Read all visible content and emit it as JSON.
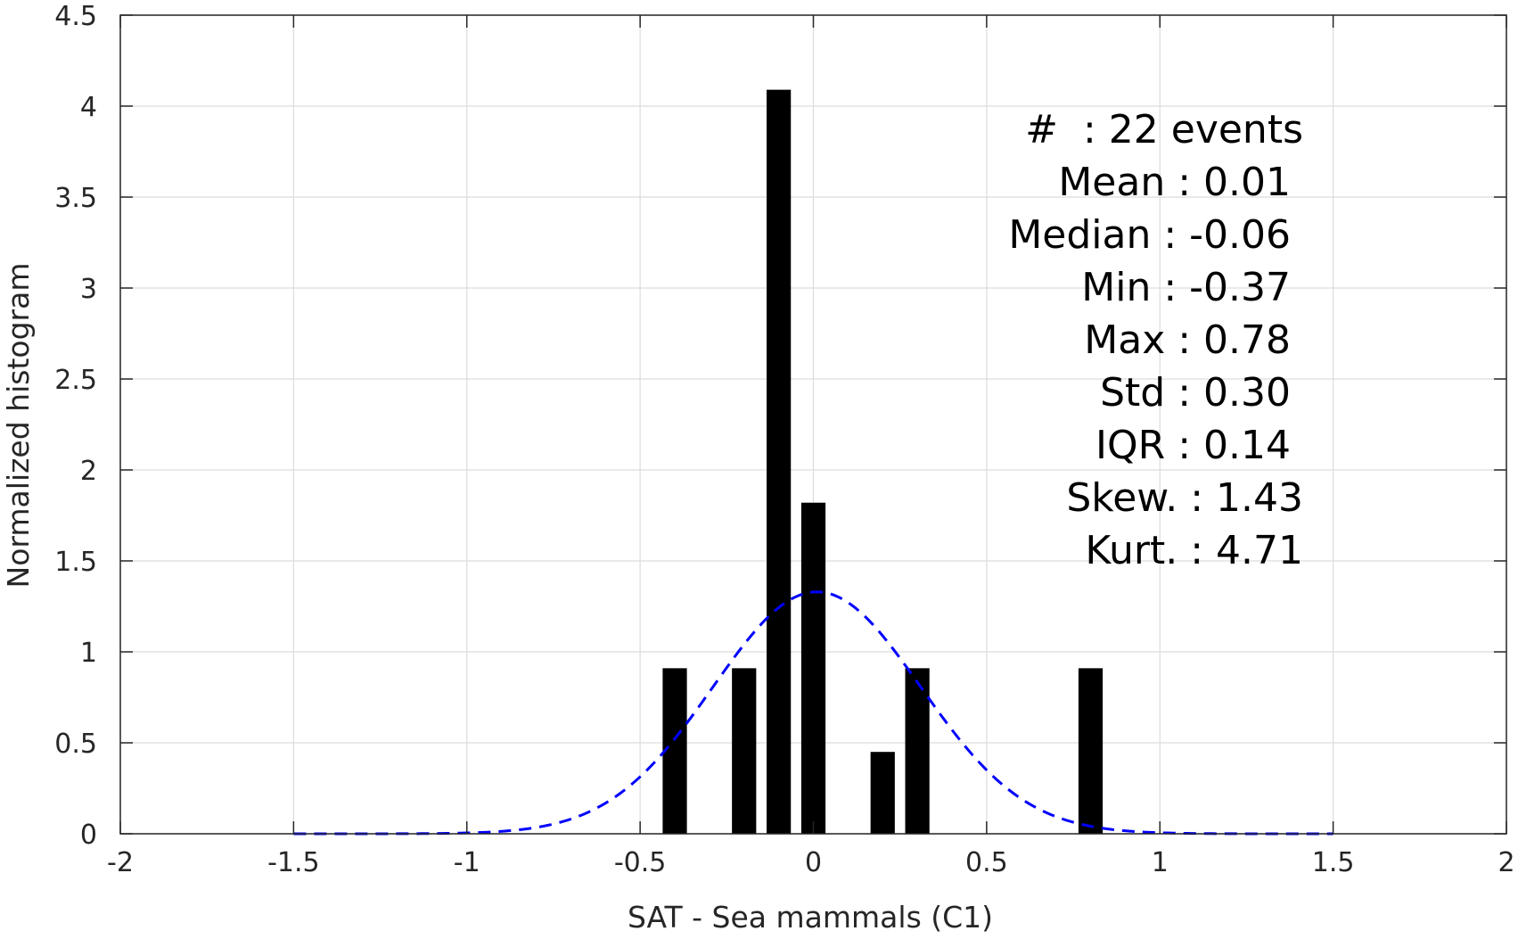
{
  "chart_data": {
    "type": "bar",
    "title": "",
    "xlabel": "SAT - Sea mammals  (C1)",
    "ylabel": "Normalized histogram",
    "xlim": [
      -2,
      2
    ],
    "ylim": [
      0,
      4.5
    ],
    "grid": true,
    "x_ticks": [
      -2,
      -1.5,
      -1,
      -0.5,
      0,
      0.5,
      1,
      1.5,
      2
    ],
    "x_tick_labels": [
      "-2",
      "-1.5",
      "-1",
      "-0.5",
      "0",
      "0.5",
      "1",
      "1.5",
      "2"
    ],
    "y_ticks": [
      0,
      0.5,
      1,
      1.5,
      2,
      2.5,
      3,
      3.5,
      4,
      4.5
    ],
    "y_tick_labels": [
      "0",
      "0.5",
      "1",
      "1.5",
      "2",
      "2.5",
      "3",
      "3.5",
      "4",
      "4.5"
    ],
    "bar_width": 0.07,
    "series": [
      {
        "type": "bar",
        "color": "#000000",
        "x": [
          -0.4,
          -0.2,
          -0.1,
          0.0,
          0.2,
          0.3,
          0.8
        ],
        "values": [
          0.91,
          0.91,
          4.09,
          1.82,
          0.45,
          0.91,
          0.91
        ]
      },
      {
        "type": "line",
        "style": "dashed",
        "color": "#0000ff",
        "fit": "normal",
        "mean": 0.01,
        "std": 0.3,
        "x_range": [
          -1.5,
          1.5
        ]
      }
    ],
    "stats": [
      {
        "label": "#",
        "sep": "  : ",
        "value": "22 events",
        "line": "#  : 22 events"
      },
      {
        "label": "Mean",
        "value": "0.01",
        "line": "Mean : 0.01"
      },
      {
        "label": "Median",
        "value": "-0.06",
        "line": "Median : -0.06"
      },
      {
        "label": "Min",
        "value": "-0.37",
        "line": "Min : -0.37"
      },
      {
        "label": "Max",
        "value": "0.78",
        "line": "Max : 0.78"
      },
      {
        "label": "Std",
        "value": "0.30",
        "line": "Std : 0.30"
      },
      {
        "label": "IQR",
        "value": "0.14",
        "line": "IQR : 0.14"
      },
      {
        "label": "Skew.",
        "value": "1.43",
        "line": "Skew. : 1.43"
      },
      {
        "label": "Kurt.",
        "value": "4.71",
        "line": "Kurt. : 4.71"
      }
    ]
  }
}
